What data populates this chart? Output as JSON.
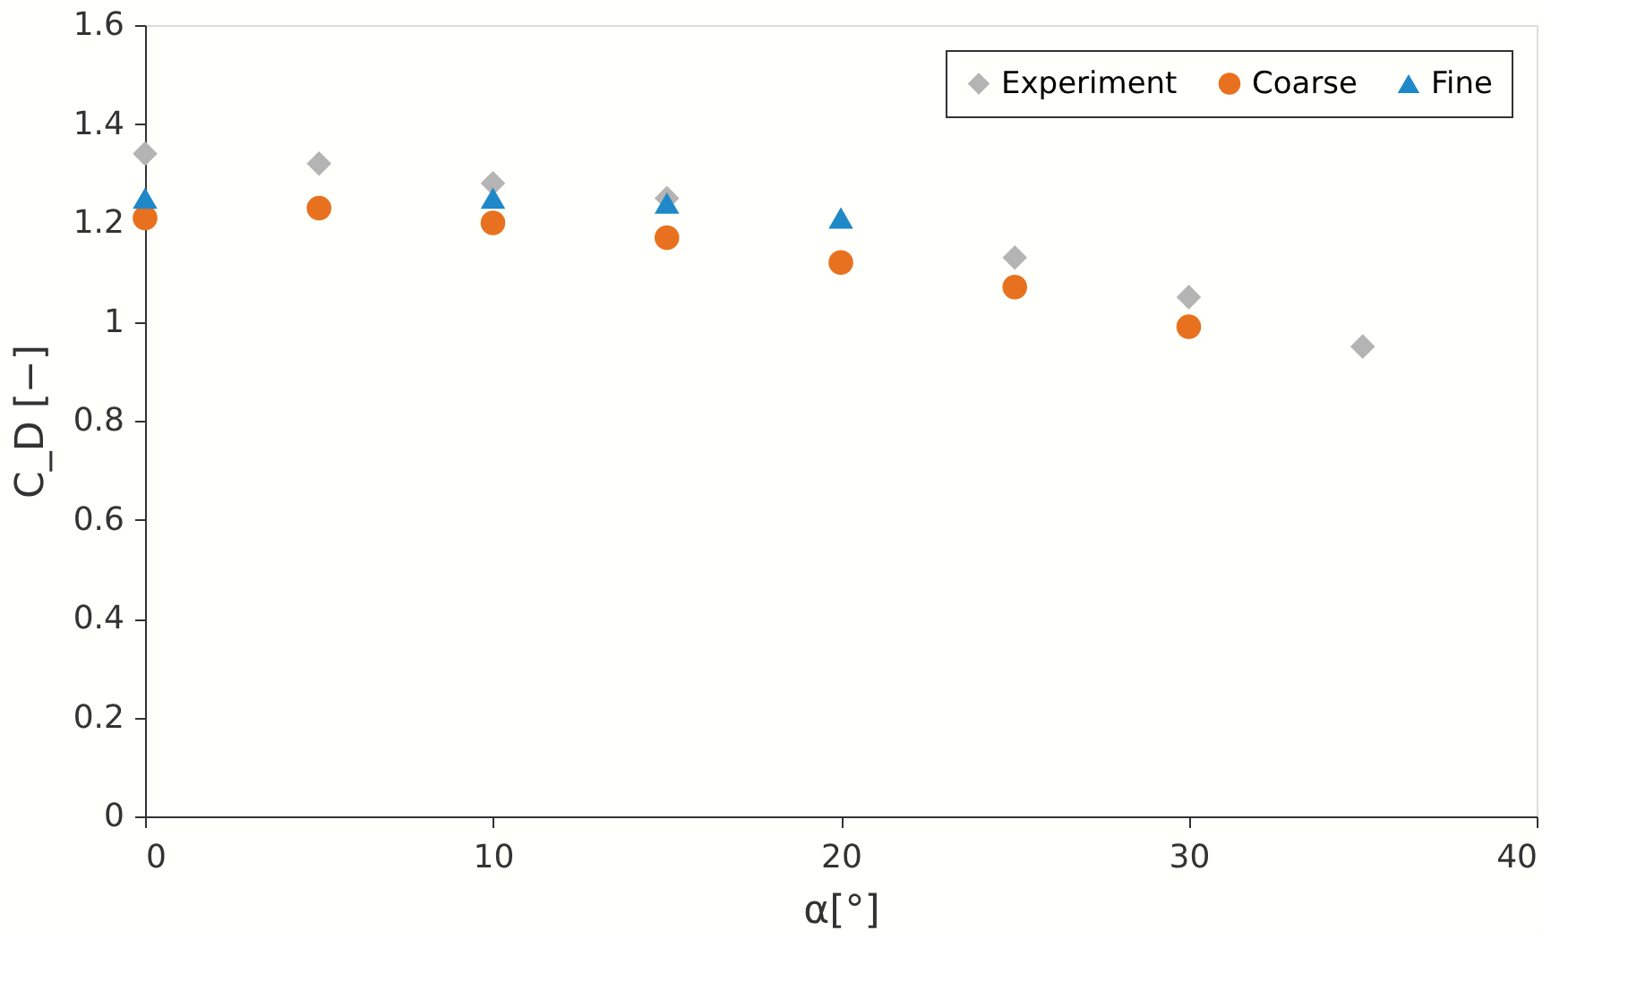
{
  "chart_data": {
    "type": "scatter",
    "xlabel": "α[°]",
    "ylabel": "C_D [−]",
    "xlim": [
      0,
      40
    ],
    "xticks": [
      0,
      10,
      20,
      30,
      40
    ],
    "ylim": [
      0,
      1.6
    ],
    "yticks": [
      0,
      0.2,
      0.4,
      0.6,
      0.8,
      1,
      1.2,
      1.4,
      1.6
    ],
    "grid": false,
    "legend": "top right",
    "series": [
      {
        "name": "Experiment",
        "color": "#b4b4b4",
        "marker": "diamond",
        "x": [
          0,
          5,
          10,
          15,
          25,
          30,
          35
        ],
        "values": [
          1.34,
          1.32,
          1.28,
          1.25,
          1.13,
          1.05,
          0.95
        ]
      },
      {
        "name": "Coarse",
        "color": "#e8711f",
        "marker": "circle",
        "x": [
          0,
          5,
          10,
          15,
          20,
          25,
          30
        ],
        "values": [
          1.21,
          1.23,
          1.2,
          1.17,
          1.12,
          1.07,
          0.99
        ]
      },
      {
        "name": "Fine",
        "color": "#1f88c8",
        "marker": "triangle",
        "x": [
          0,
          10,
          15,
          20
        ],
        "values": [
          1.25,
          1.25,
          1.24,
          1.21
        ]
      }
    ]
  }
}
